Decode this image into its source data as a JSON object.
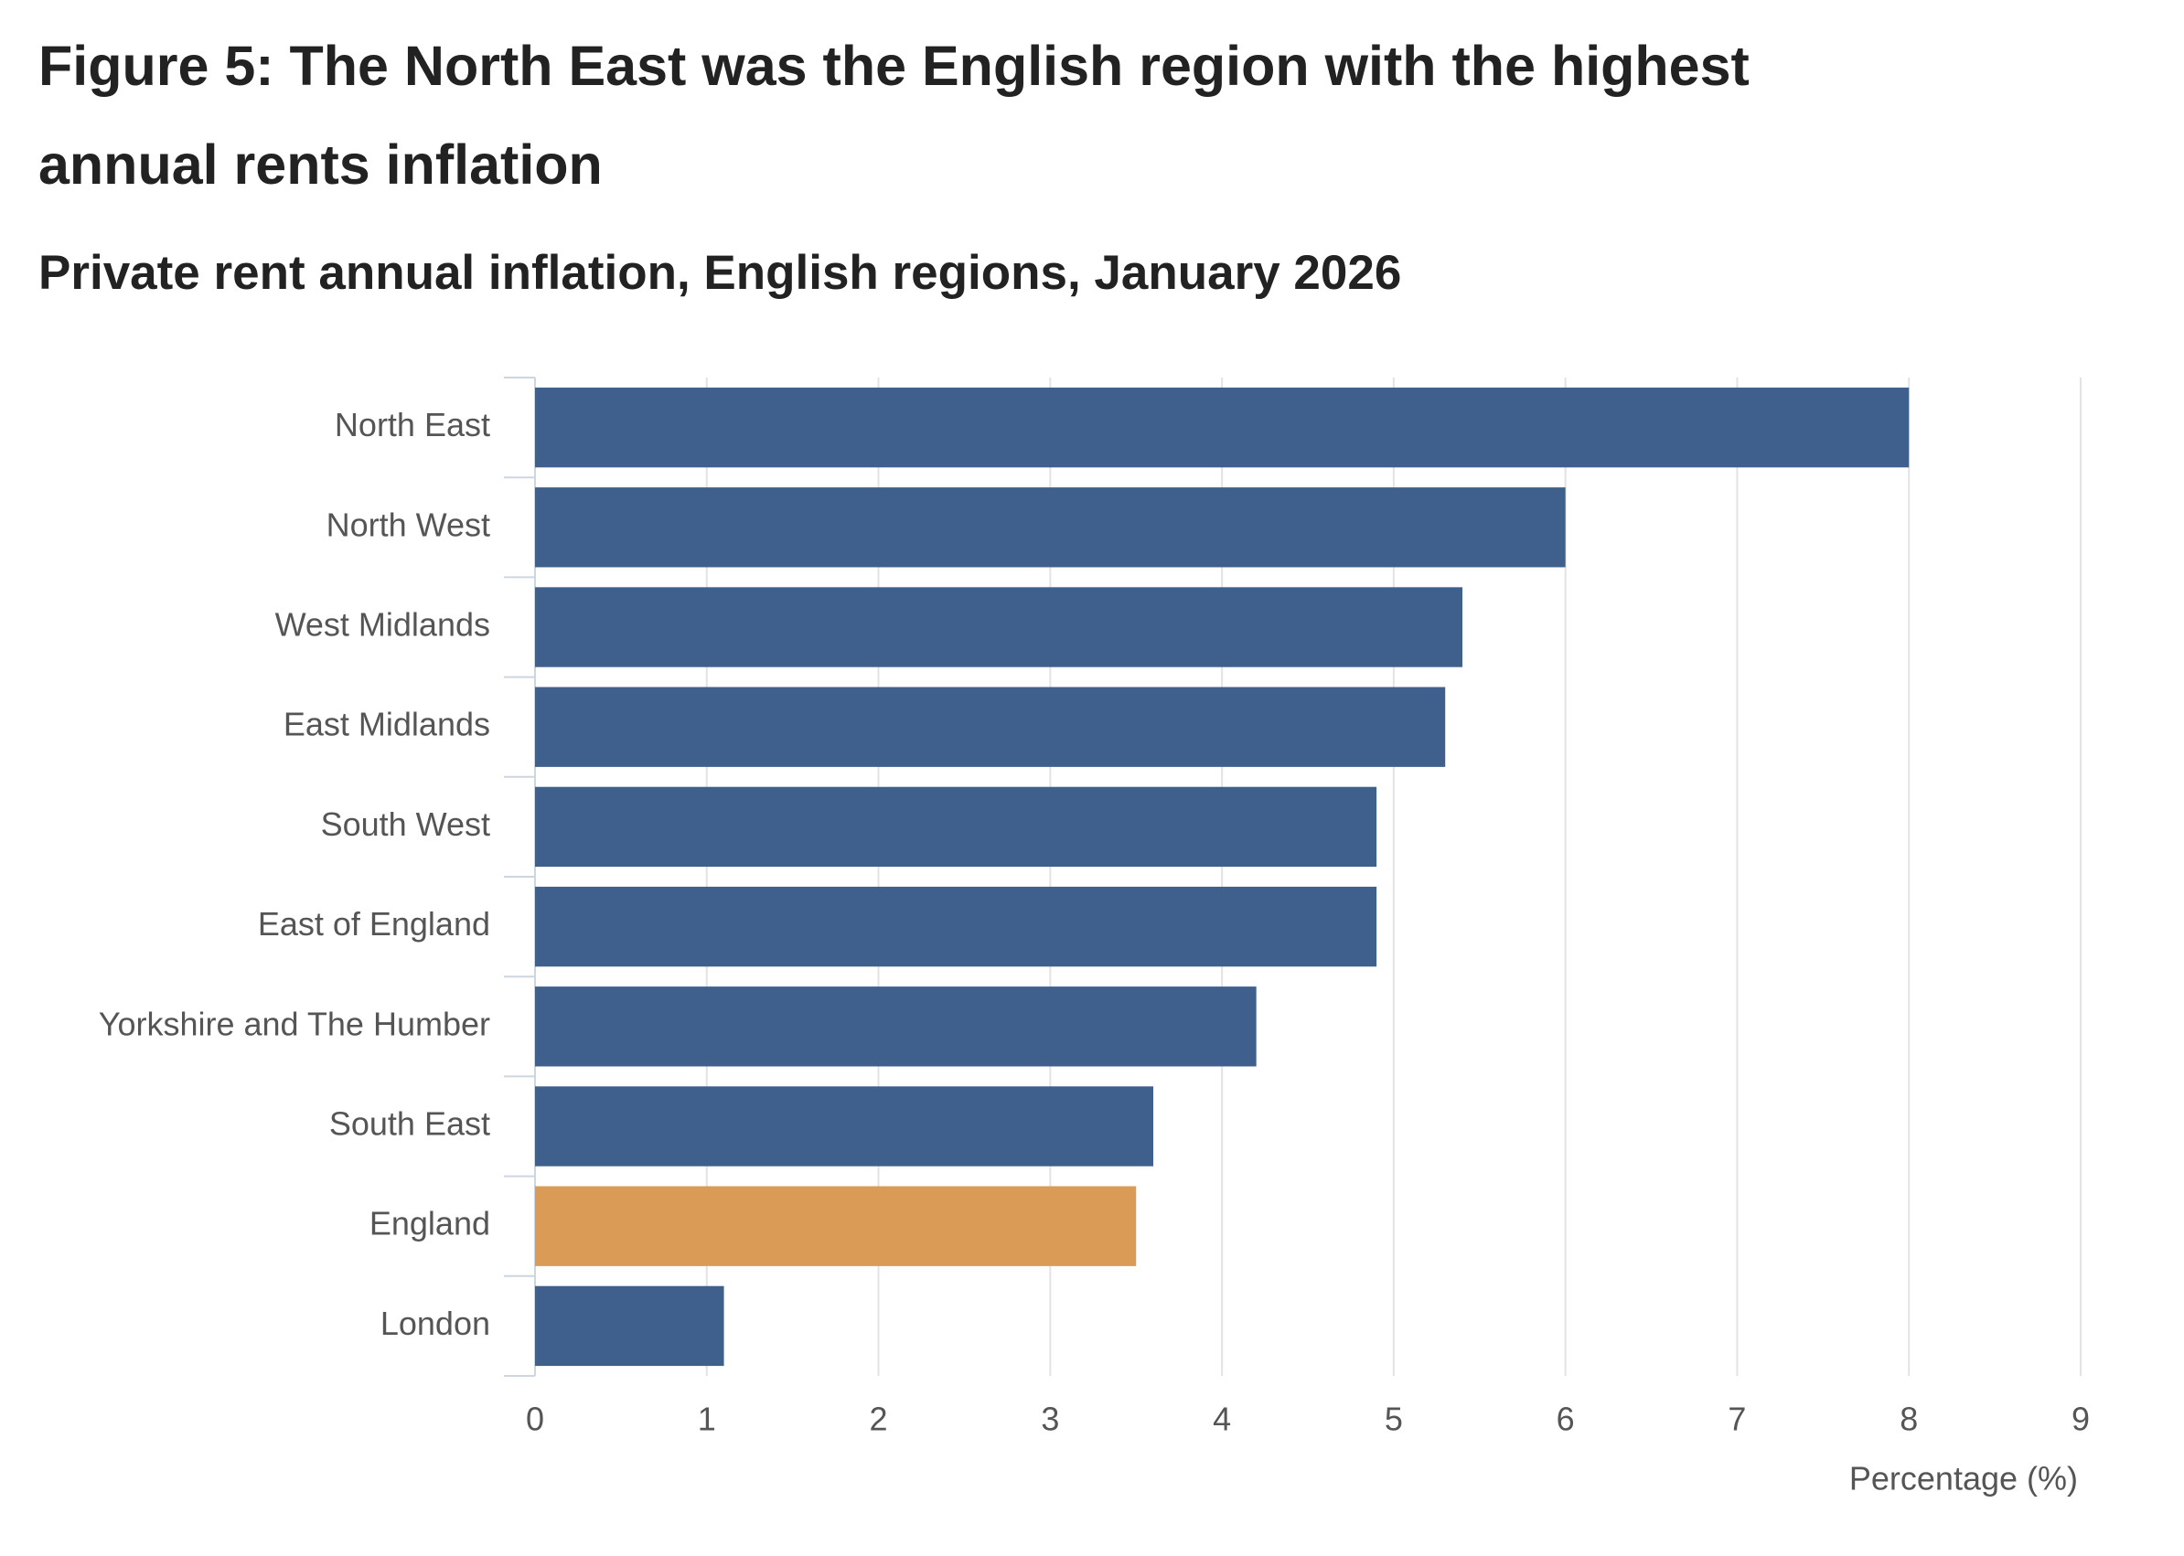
{
  "chart_data": {
    "type": "bar",
    "orientation": "horizontal",
    "title": "Figure 5: The North East was the English region with the highest annual rents inflation",
    "subtitle": "Private rent annual inflation, English regions, January 2026",
    "categories": [
      "North East",
      "North West",
      "West Midlands",
      "East Midlands",
      "South West",
      "East of England",
      "Yorkshire and The Humber",
      "South East",
      "England",
      "London"
    ],
    "values": [
      8.0,
      6.0,
      5.4,
      5.3,
      4.9,
      4.9,
      4.2,
      3.6,
      3.5,
      1.1
    ],
    "colors": [
      "#3f5f8c",
      "#3f5f8c",
      "#3f5f8c",
      "#3f5f8c",
      "#3f5f8c",
      "#3f5f8c",
      "#3f5f8c",
      "#3f5f8c",
      "#d99b55",
      "#3f5f8c"
    ],
    "xlabel": "Percentage (%)",
    "xlim": [
      0,
      9
    ],
    "xticks": [
      0,
      1,
      2,
      3,
      4,
      5,
      6,
      7,
      8,
      9
    ],
    "grid": true
  }
}
